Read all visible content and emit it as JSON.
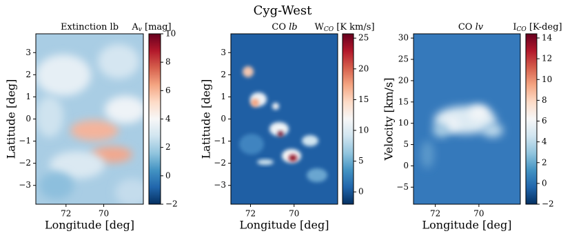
{
  "title": "Cyg-West",
  "chart_data": [
    {
      "type": "heatmap",
      "title": {
        "text": "Extinction lb"
      },
      "colorbar_label": {
        "symbol": "A",
        "sub": "v",
        "unit": "[mag]"
      },
      "xlabel": "Longitude [deg]",
      "ylabel": "Latitude [deg]",
      "xlim": [
        73.6,
        67.9
      ],
      "xticks": [
        72,
        70
      ],
      "ylim": [
        -3.85,
        3.85
      ],
      "yticks": [
        {
          "value": -3,
          "label": "−3"
        },
        {
          "value": -2,
          "label": "−2"
        },
        {
          "value": -1,
          "label": "−1"
        },
        0,
        1,
        2,
        3
      ],
      "clim": [
        -2,
        10
      ],
      "cticks": [
        {
          "value": -2,
          "label": "−2"
        },
        0,
        2,
        4,
        6,
        8,
        10
      ],
      "colormap": [
        "#053061",
        "#2166ac",
        "#4393c3",
        "#92c5de",
        "#d1e5f0",
        "#f7f7f7",
        "#fddbc7",
        "#f4a582",
        "#d6604d",
        "#b2182b",
        "#67001f"
      ]
    },
    {
      "type": "heatmap",
      "title": {
        "text": "CO",
        "italic": "lb"
      },
      "colorbar_label": {
        "symbol": "W",
        "sub": "CO",
        "unit": "[K km/s]"
      },
      "xlabel": "Longitude [deg]",
      "ylabel": "Latitude [deg]",
      "xlim": [
        72.9,
        68.0
      ],
      "xticks": [
        72,
        70
      ],
      "ylim": [
        -3.85,
        3.85
      ],
      "yticks": [
        {
          "value": -3,
          "label": "−3"
        },
        {
          "value": -2,
          "label": "−2"
        },
        {
          "value": -1,
          "label": "−1"
        },
        0,
        1,
        2,
        3
      ],
      "clim": [
        -2,
        25.7
      ],
      "cticks": [
        0,
        5,
        10,
        15,
        20,
        25
      ],
      "colormap": [
        "#053061",
        "#2166ac",
        "#4393c3",
        "#92c5de",
        "#d1e5f0",
        "#f7f7f7",
        "#fddbc7",
        "#f4a582",
        "#d6604d",
        "#b2182b",
        "#67001f"
      ]
    },
    {
      "type": "heatmap",
      "title": {
        "text": "CO",
        "italic": "lv"
      },
      "colorbar_label": {
        "symbol": "I",
        "sub": "CO",
        "unit": "[K-deg]"
      },
      "xlabel": "Longitude [deg]",
      "ylabel": "Velocity [km/s]",
      "xlim": [
        73.0,
        68.1
      ],
      "xticks": [
        72,
        70
      ],
      "ylim": [
        -9,
        31
      ],
      "yticks": [
        {
          "value": -5,
          "label": "−5"
        },
        0,
        5,
        10,
        15,
        20,
        25,
        30
      ],
      "clim": [
        -2,
        14.4
      ],
      "cticks": [
        {
          "value": -2,
          "label": "−2"
        },
        0,
        2,
        4,
        6,
        8,
        10,
        12,
        14
      ],
      "colormap": [
        "#053061",
        "#2166ac",
        "#4393c3",
        "#92c5de",
        "#d1e5f0",
        "#f7f7f7",
        "#fddbc7",
        "#f4a582",
        "#d6604d",
        "#b2182b",
        "#67001f"
      ]
    }
  ]
}
